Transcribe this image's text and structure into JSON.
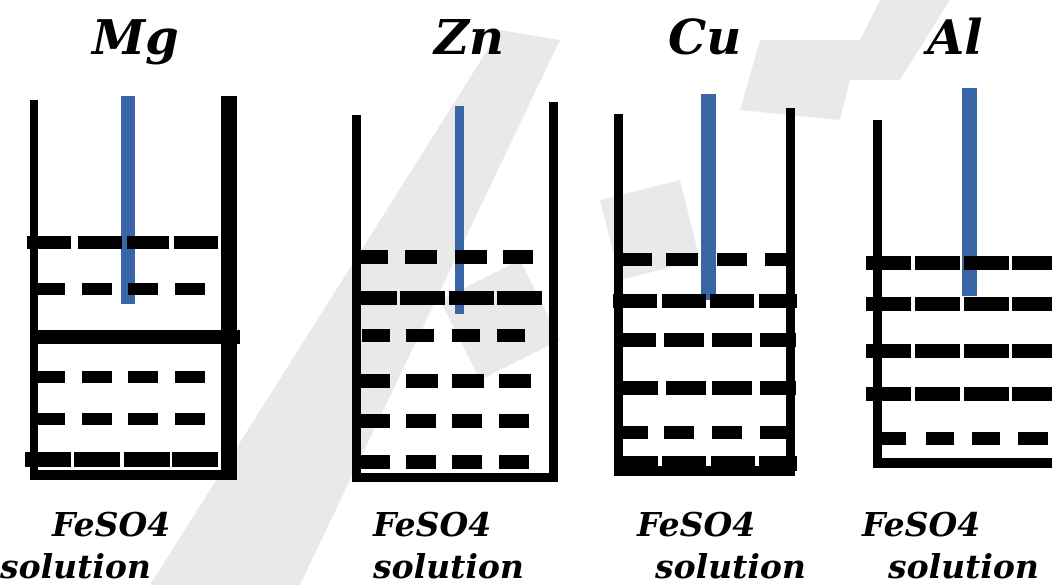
{
  "diagram": {
    "colors": {
      "beaker": "#000000",
      "rod": "#3a66a8",
      "watermark": "#e8e8e8"
    },
    "beakers": [
      {
        "metal": "Mg",
        "solution_line1": "FeSO4",
        "solution_line2": "solution"
      },
      {
        "metal": "Zn",
        "solution_line1": "FeSO4",
        "solution_line2": "solution"
      },
      {
        "metal": "Cu",
        "solution_line1": "FeSO4",
        "solution_line2": "solution"
      },
      {
        "metal": "Al",
        "solution_line1": "FeSO4",
        "solution_line2": "solution"
      }
    ]
  }
}
